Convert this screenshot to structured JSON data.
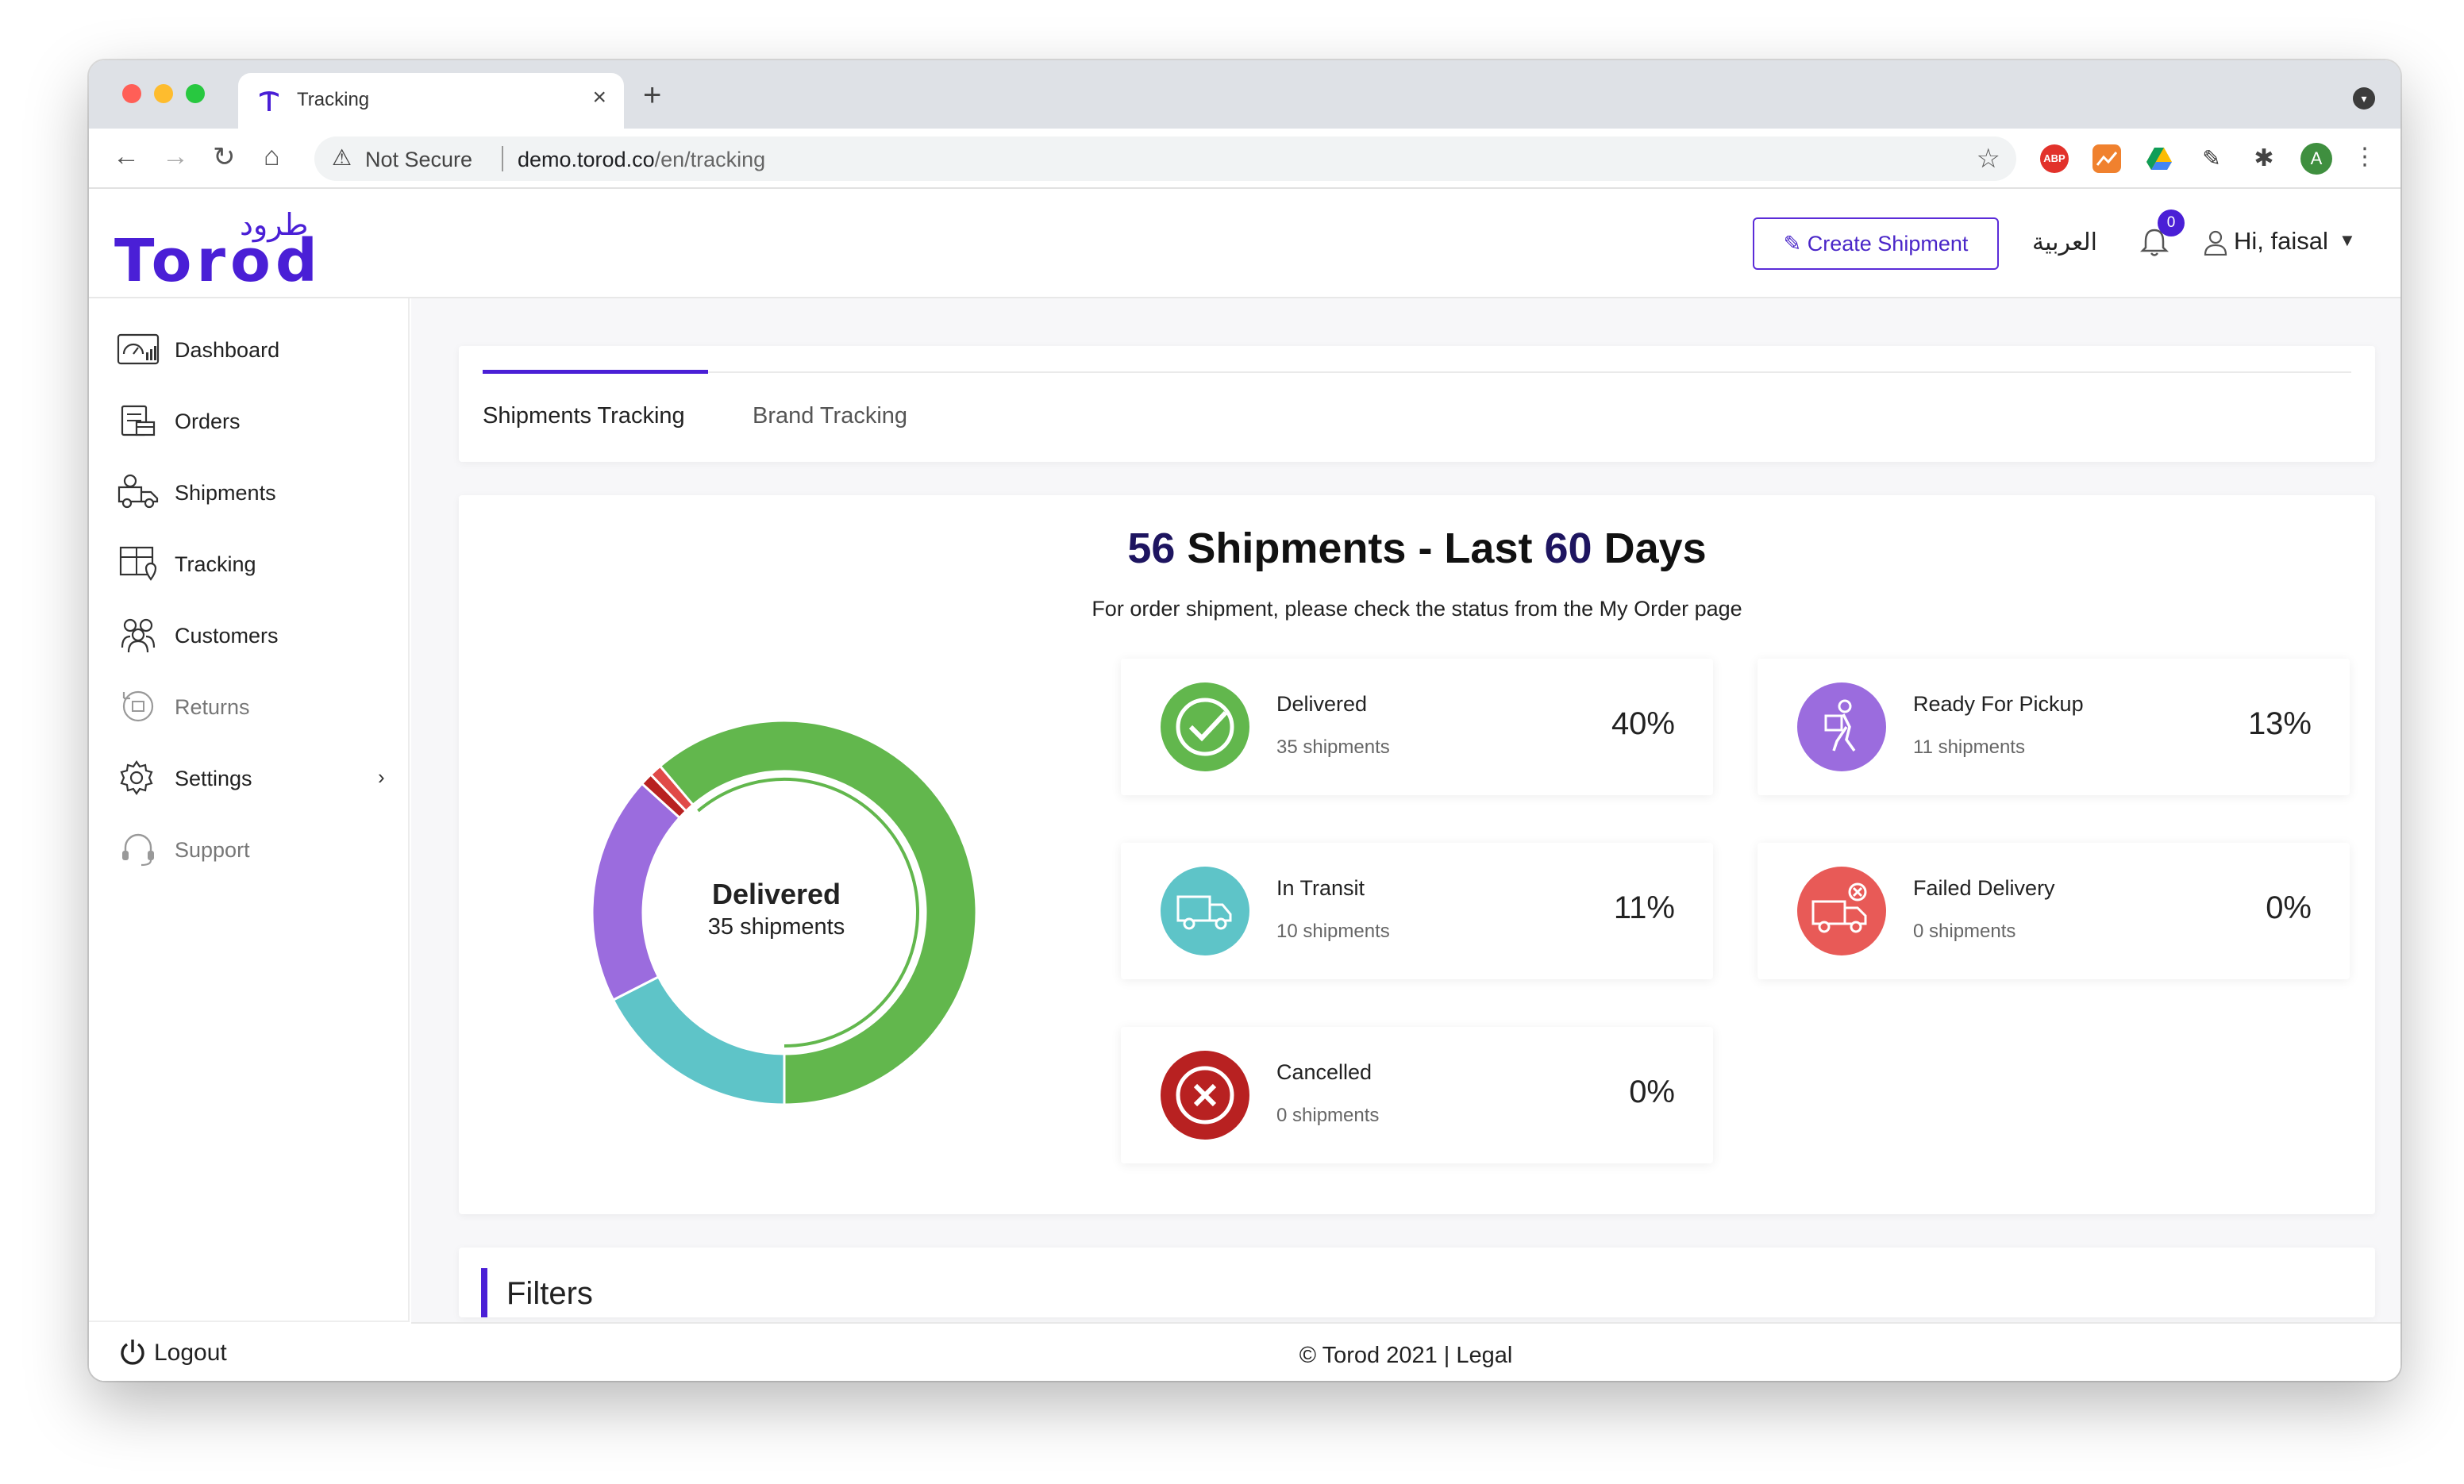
{
  "browser": {
    "tab_title": "Tracking",
    "new_tab_glyph": "+",
    "close_glyph": "×",
    "security_label": "Not Secure",
    "url_host": "demo.torod.co",
    "url_path": "/en/tracking",
    "extensions": [
      "ABP",
      "chart-extension",
      "google-drive",
      "eyedropper",
      "puzzle-extensions"
    ],
    "profile_initial": "A"
  },
  "header": {
    "logo_latin": "Torod",
    "logo_arabic": "طرود",
    "create_shipment_label": "Create Shipment",
    "language_label": "العربية",
    "notifications_count": "0",
    "greeting": "Hi, faisal"
  },
  "sidebar": {
    "items": [
      {
        "label": "Dashboard",
        "icon": "dashboard-icon"
      },
      {
        "label": "Orders",
        "icon": "orders-icon"
      },
      {
        "label": "Shipments",
        "icon": "shipments-icon"
      },
      {
        "label": "Tracking",
        "icon": "tracking-icon"
      },
      {
        "label": "Customers",
        "icon": "customers-icon"
      },
      {
        "label": "Returns",
        "icon": "returns-icon"
      },
      {
        "label": "Settings",
        "icon": "gear-icon"
      },
      {
        "label": "Support",
        "icon": "headset-icon"
      }
    ],
    "logout_label": "Logout"
  },
  "tabs": {
    "active": "Shipments Tracking",
    "inactive": "Brand Tracking"
  },
  "stats": {
    "total": "56",
    "title_mid": " Shipments - Last ",
    "days": "60",
    "title_end": " Days",
    "subtitle": "For order shipment, please check the status from the My Order page",
    "center_title": "Delivered",
    "center_sub": "35 shipments"
  },
  "statuses": [
    {
      "label": "Delivered",
      "count": "35 shipments",
      "percent": "40%",
      "color": "#62b74d",
      "icon": "check-circle-icon"
    },
    {
      "label": "Ready For Pickup",
      "count": "11 shipments",
      "percent": "13%",
      "color": "#9b6cde",
      "icon": "courier-icon"
    },
    {
      "label": "In Transit",
      "count": "10 shipments",
      "percent": "11%",
      "color": "#5ec4c8",
      "icon": "truck-icon"
    },
    {
      "label": "Failed Delivery",
      "count": "0 shipments",
      "percent": "0%",
      "color": "#e85a57",
      "icon": "failed-truck-icon"
    },
    {
      "label": "Cancelled",
      "count": "0 shipments",
      "percent": "0%",
      "color": "#b82121",
      "icon": "cancel-circle-icon"
    }
  ],
  "donut": {
    "segments": [
      {
        "name": "Delivered",
        "value": 35,
        "color": "#62b74d"
      },
      {
        "name": "Failed Delivery",
        "value": 0.6,
        "color": "#e04a48"
      },
      {
        "name": "Cancelled",
        "value": 0.6,
        "color": "#b82121"
      },
      {
        "name": "Ready For Pickup",
        "value": 11,
        "color": "#9b6cde"
      },
      {
        "name": "In Transit",
        "value": 10,
        "color": "#5ec4c8"
      }
    ]
  },
  "filters": {
    "title": "Filters"
  },
  "footer": {
    "text": "© Torod 2021 | Legal"
  }
}
